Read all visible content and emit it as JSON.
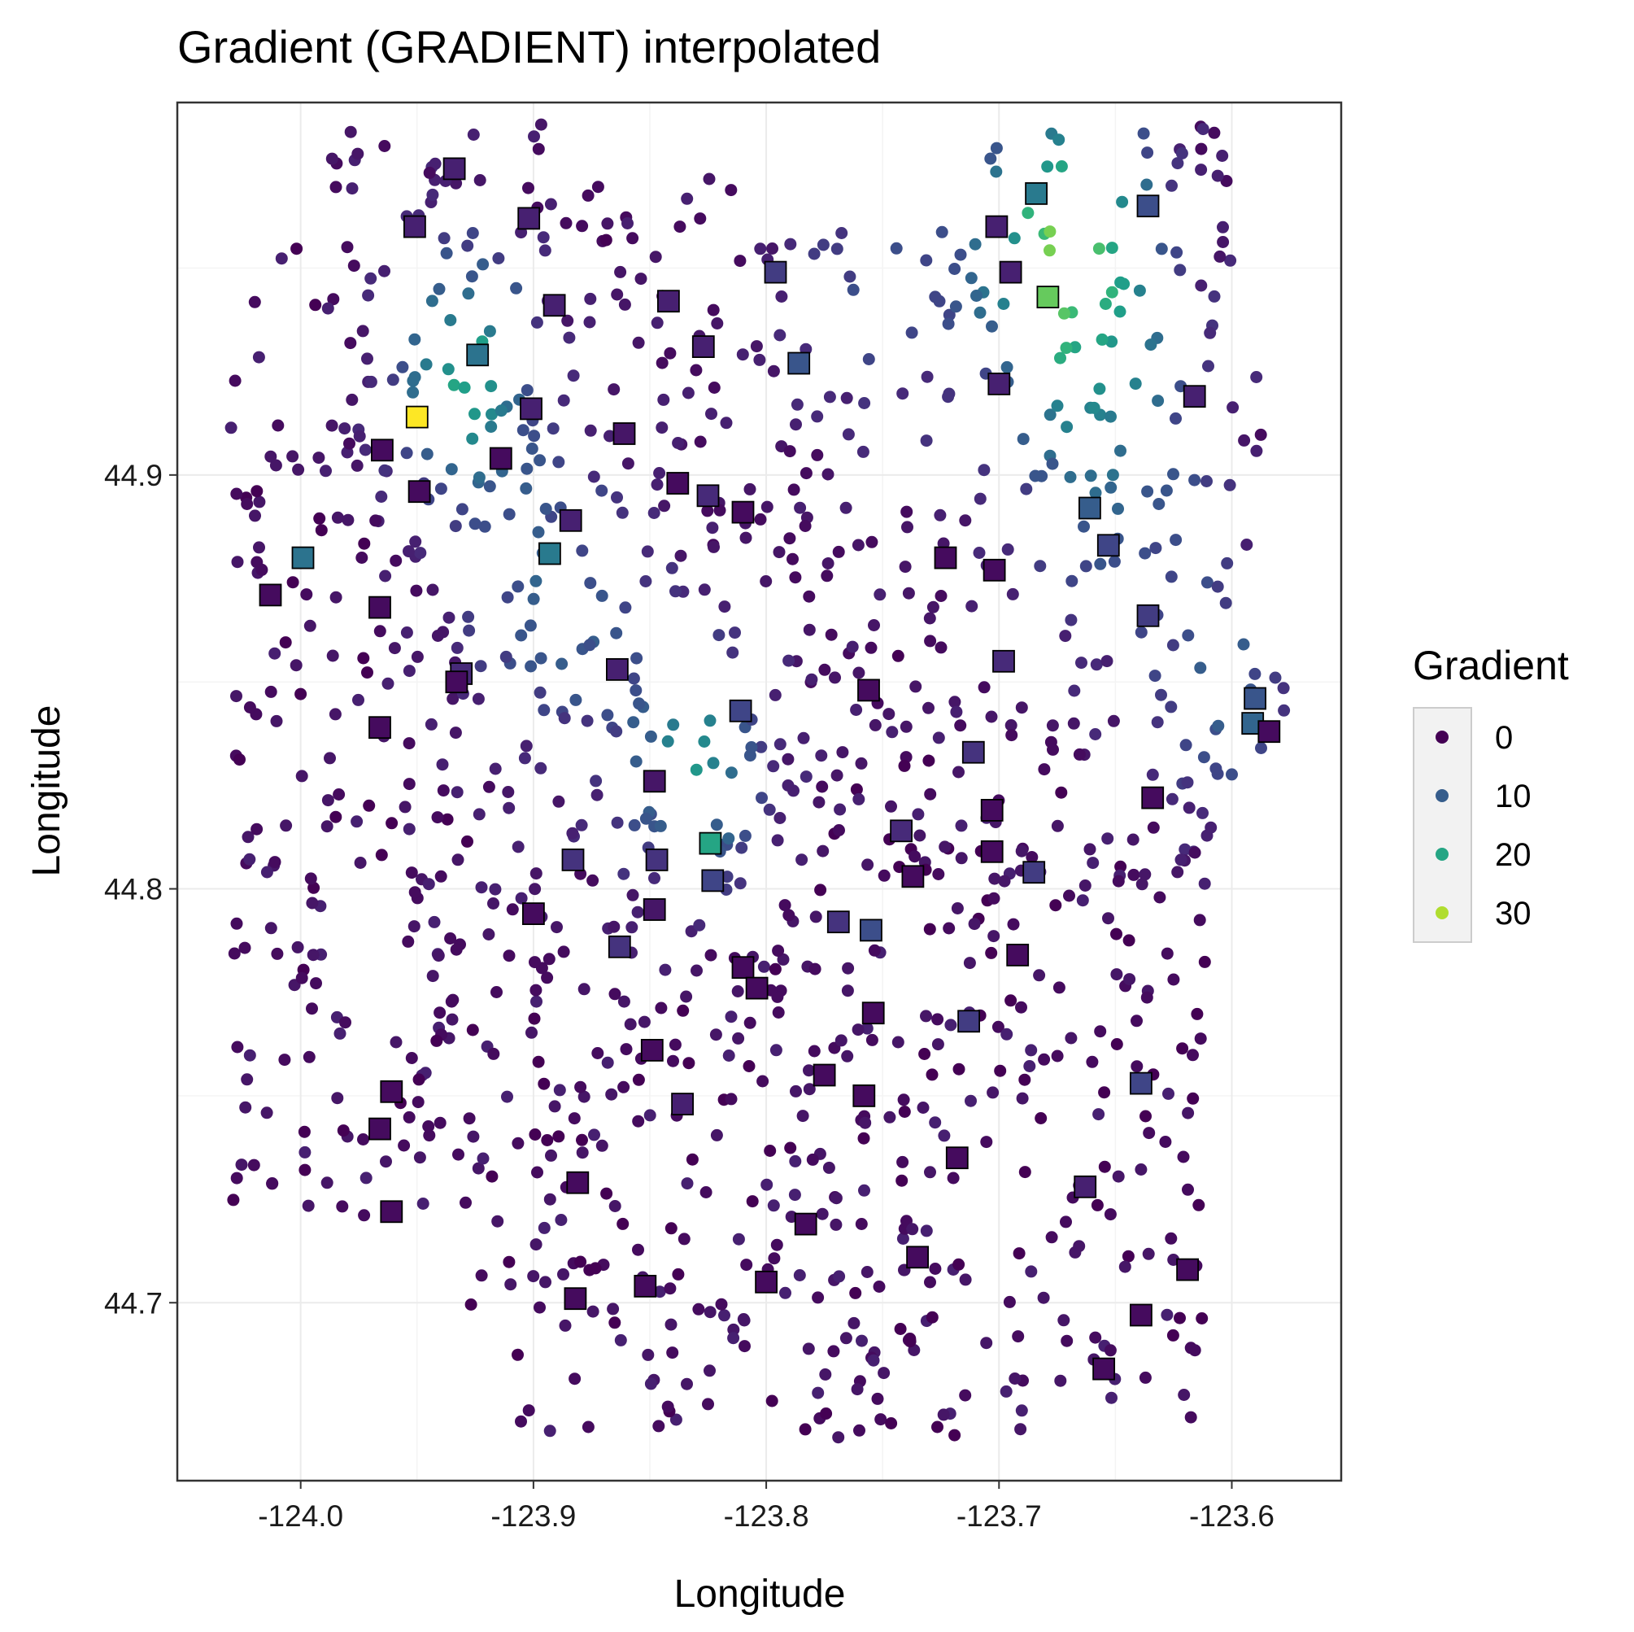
{
  "chart_data": {
    "type": "scatter",
    "title": "Gradient (GRADIENT) interpolated",
    "xlabel": "Longitude",
    "ylabel": "Longitude",
    "xlim": [
      -124.053,
      -123.553
    ],
    "ylim": [
      44.657,
      44.99
    ],
    "x_ticks": [
      {
        "value": -124.0,
        "label": "-124.0"
      },
      {
        "value": -123.9,
        "label": "-123.9"
      },
      {
        "value": -123.8,
        "label": "-123.8"
      },
      {
        "value": -123.7,
        "label": "-123.7"
      },
      {
        "value": -123.6,
        "label": "-123.6"
      }
    ],
    "y_ticks": [
      {
        "value": 44.7,
        "label": "44.7"
      },
      {
        "value": 44.8,
        "label": "44.8"
      },
      {
        "value": 44.9,
        "label": "44.9"
      }
    ],
    "grid": true,
    "legend": {
      "title": "Gradient",
      "position": "right",
      "entries": [
        {
          "label": "0",
          "value": 0,
          "color": "#440154"
        },
        {
          "label": "10",
          "value": 10,
          "color": "#3b528b"
        },
        {
          "label": "20",
          "value": 20,
          "color": "#21908c"
        },
        {
          "label": "30",
          "value": 30,
          "color": "#c2df23"
        }
      ]
    },
    "colormap": "viridis",
    "value_range": [
      0,
      34
    ],
    "series": [
      {
        "marker": "square",
        "points": [
          [
            -123.934,
            44.974,
            3
          ],
          [
            -123.951,
            44.96,
            3
          ],
          [
            -123.902,
            44.962,
            3
          ],
          [
            -123.891,
            44.941,
            3
          ],
          [
            -123.842,
            44.942,
            3
          ],
          [
            -123.796,
            44.949,
            6
          ],
          [
            -123.786,
            44.927,
            9
          ],
          [
            -123.827,
            44.931,
            3
          ],
          [
            -123.924,
            44.929,
            13
          ],
          [
            -123.95,
            44.914,
            34
          ],
          [
            -123.901,
            44.916,
            3
          ],
          [
            -123.861,
            44.91,
            2
          ],
          [
            -123.965,
            44.906,
            1
          ],
          [
            -123.949,
            44.896,
            1
          ],
          [
            -123.914,
            44.904,
            1
          ],
          [
            -123.838,
            44.898,
            1
          ],
          [
            -123.825,
            44.895,
            4
          ],
          [
            -123.81,
            44.891,
            1
          ],
          [
            -123.884,
            44.889,
            3
          ],
          [
            -123.999,
            44.88,
            13
          ],
          [
            -123.893,
            44.881,
            14
          ],
          [
            -124.013,
            44.871,
            1
          ],
          [
            -123.966,
            44.868,
            1
          ],
          [
            -123.723,
            44.88,
            1
          ],
          [
            -123.702,
            44.877,
            1
          ],
          [
            -123.931,
            44.852,
            4
          ],
          [
            -123.933,
            44.85,
            1
          ],
          [
            -123.864,
            44.853,
            3
          ],
          [
            -123.756,
            44.848,
            1
          ],
          [
            -123.698,
            44.855,
            4
          ],
          [
            -123.684,
            44.968,
            14
          ],
          [
            -123.636,
            44.965,
            8
          ],
          [
            -123.701,
            44.96,
            3
          ],
          [
            -123.695,
            44.949,
            3
          ],
          [
            -123.679,
            44.943,
            26
          ],
          [
            -123.7,
            44.922,
            3
          ],
          [
            -123.616,
            44.919,
            3
          ],
          [
            -123.661,
            44.892,
            10
          ],
          [
            -123.653,
            44.883,
            7
          ],
          [
            -123.636,
            44.866,
            6
          ],
          [
            -123.59,
            44.846,
            9
          ],
          [
            -123.591,
            44.84,
            11
          ],
          [
            -123.584,
            44.838,
            1
          ],
          [
            -123.811,
            44.843,
            7
          ],
          [
            -123.966,
            44.839,
            1
          ],
          [
            -123.711,
            44.833,
            5
          ],
          [
            -123.634,
            44.822,
            1
          ],
          [
            -123.848,
            44.826,
            2
          ],
          [
            -123.703,
            44.819,
            1
          ],
          [
            -123.742,
            44.814,
            4
          ],
          [
            -123.824,
            44.811,
            20
          ],
          [
            -123.883,
            44.807,
            5
          ],
          [
            -123.847,
            44.807,
            5
          ],
          [
            -123.703,
            44.809,
            1
          ],
          [
            -123.737,
            44.803,
            1
          ],
          [
            -123.685,
            44.804,
            6
          ],
          [
            -123.823,
            44.802,
            7
          ],
          [
            -123.9,
            44.794,
            1
          ],
          [
            -123.848,
            44.795,
            2
          ],
          [
            -123.769,
            44.792,
            5
          ],
          [
            -123.755,
            44.79,
            8
          ],
          [
            -123.863,
            44.786,
            5
          ],
          [
            -123.81,
            44.781,
            1
          ],
          [
            -123.804,
            44.776,
            1
          ],
          [
            -123.692,
            44.784,
            1
          ],
          [
            -123.754,
            44.77,
            1
          ],
          [
            -123.713,
            44.768,
            6
          ],
          [
            -123.849,
            44.761,
            1
          ],
          [
            -123.775,
            44.755,
            1
          ],
          [
            -123.758,
            44.75,
            1
          ],
          [
            -123.961,
            44.751,
            1
          ],
          [
            -123.639,
            44.753,
            7
          ],
          [
            -123.836,
            44.748,
            3
          ],
          [
            -123.966,
            44.742,
            1
          ],
          [
            -123.718,
            44.735,
            1
          ],
          [
            -123.881,
            44.729,
            1
          ],
          [
            -123.663,
            44.728,
            3
          ],
          [
            -123.961,
            44.722,
            1
          ],
          [
            -123.783,
            44.719,
            1
          ],
          [
            -123.735,
            44.711,
            1
          ],
          [
            -123.619,
            44.708,
            1
          ],
          [
            -123.8,
            44.705,
            1
          ],
          [
            -123.852,
            44.704,
            1
          ],
          [
            -123.882,
            44.701,
            1
          ],
          [
            -123.639,
            44.697,
            1
          ],
          [
            -123.655,
            44.684,
            1
          ]
        ]
      },
      {
        "marker": "circle",
        "points": []
      }
    ]
  }
}
